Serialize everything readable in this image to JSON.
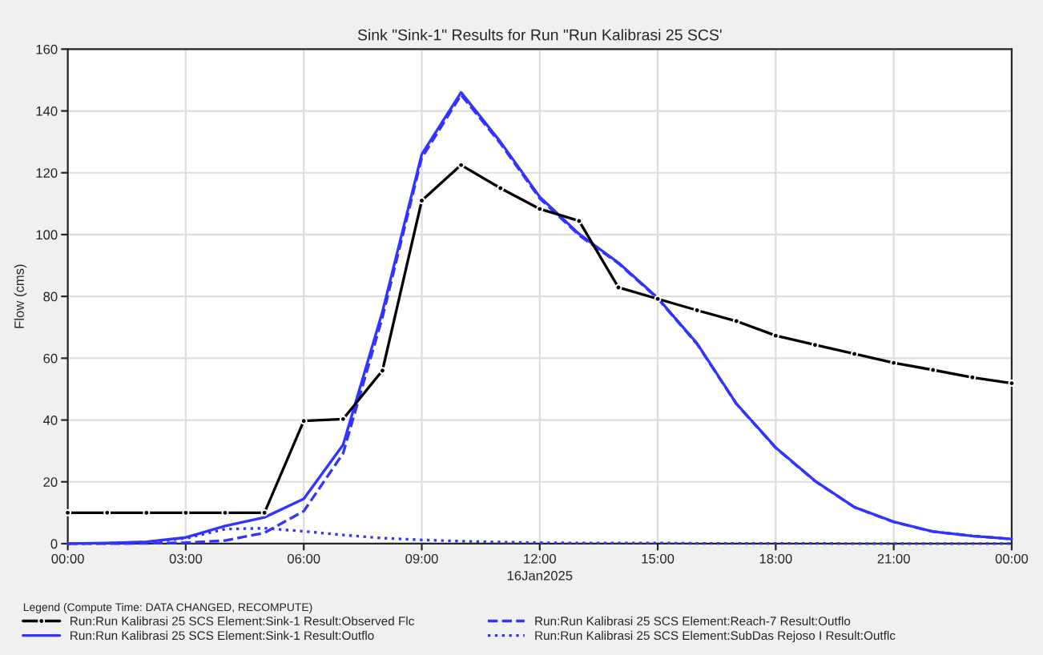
{
  "chart_data": {
    "type": "line",
    "title": "Sink \"Sink-1\" Results for Run \"Run Kalibrasi 25 SCS'",
    "xlabel": "16Jan2025",
    "ylabel": "Flow (cms)",
    "x": [
      0,
      1,
      2,
      3,
      4,
      5,
      6,
      7,
      8,
      9,
      10,
      11,
      12,
      13,
      14,
      15,
      16,
      17,
      18,
      19,
      20,
      21,
      22,
      23,
      24
    ],
    "xlim": [
      0,
      24
    ],
    "xticks": [
      {
        "value": 0,
        "label": "00:00"
      },
      {
        "value": 3,
        "label": "03:00"
      },
      {
        "value": 6,
        "label": "06:00"
      },
      {
        "value": 9,
        "label": "09:00"
      },
      {
        "value": 12,
        "label": "12:00"
      },
      {
        "value": 15,
        "label": "15:00"
      },
      {
        "value": 18,
        "label": "18:00"
      },
      {
        "value": 21,
        "label": "21:00"
      },
      {
        "value": 24,
        "label": "00:00"
      }
    ],
    "ylim": [
      0,
      160
    ],
    "yticks": [
      0,
      20,
      40,
      60,
      80,
      100,
      120,
      140,
      160
    ],
    "grid": true,
    "legend": "bottom",
    "legend_title": "Legend (Compute Time: DATA CHANGED, RECOMPUTE)",
    "series": [
      {
        "name": "Run:Run Kalibrasi 25 SCS Element:Sink-1 Result:Observed Flc",
        "color": "#000000",
        "marker": "circle",
        "line_style": "solid",
        "values": [
          10,
          10,
          10,
          10,
          10,
          10,
          39.7,
          40.3,
          56,
          111,
          122.5,
          115,
          108.3,
          104.4,
          82.9,
          79.2,
          75.5,
          72,
          67.3,
          64.3,
          61.4,
          58.5,
          56.2,
          53.8,
          51.9
        ]
      },
      {
        "name": "Run:Run Kalibrasi 25 SCS Element:Reach-7 Result:Outflo",
        "color": "#3333ff",
        "marker": "none",
        "line_style": "dashed",
        "values": [
          0,
          0,
          0.1,
          0.3,
          1,
          3.5,
          10.5,
          29.2,
          73.2,
          124.8,
          145.2,
          129.5,
          111.7,
          99.8,
          90.7,
          79.3,
          64.6,
          45.2,
          31,
          20.2,
          11.8,
          7,
          3.9,
          2.5,
          1.5
        ]
      },
      {
        "name": "Run:Run Kalibrasi 25 SCS Element:Sink-1 Result:Outflo",
        "color": "#3333ff",
        "marker": "none",
        "line_style": "solid",
        "values": [
          0,
          0.2,
          0.6,
          2,
          5.7,
          8.5,
          14.5,
          32,
          75,
          126,
          146,
          130,
          112.2,
          100.2,
          90.9,
          79.5,
          64.8,
          45.3,
          31.1,
          20.3,
          11.8,
          7.1,
          3.9,
          2.5,
          1.5
        ]
      },
      {
        "name": "Run:Run Kalibrasi 25 SCS Element:SubDas Rejoso I Result:Outflc",
        "color": "#3333ff",
        "marker": "none",
        "line_style": "dotted",
        "values": [
          0,
          0.1,
          0.5,
          1.7,
          4.7,
          5,
          4,
          2.8,
          1.8,
          1.2,
          0.8,
          0.5,
          0.3,
          0.2,
          0.2,
          0.2,
          0.1,
          0.1,
          0.1,
          0.1,
          0,
          0,
          0,
          0,
          0
        ]
      }
    ]
  }
}
